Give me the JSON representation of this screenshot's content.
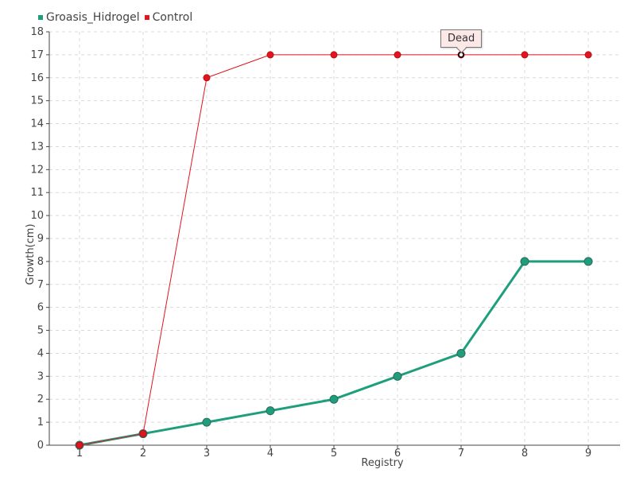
{
  "chart_data": {
    "type": "line",
    "xlabel": "Registry",
    "ylabel": "Growth(cm)",
    "x": [
      1,
      2,
      3,
      4,
      5,
      6,
      7,
      8,
      9
    ],
    "ylim": [
      0,
      18
    ],
    "yticks": [
      0,
      1,
      2,
      3,
      4,
      5,
      6,
      7,
      8,
      9,
      10,
      11,
      12,
      13,
      14,
      15,
      16,
      17,
      18
    ],
    "grid": true,
    "legend_position": "top-left",
    "series": [
      {
        "name": "Groasis_Hidrogel",
        "color": "#1f9e7e",
        "values": [
          0,
          0.5,
          1,
          1.5,
          2,
          3,
          4,
          8,
          8
        ]
      },
      {
        "name": "Control",
        "color": "#e0151f",
        "values": [
          0,
          0.5,
          16,
          17,
          17,
          17,
          17,
          17,
          17
        ]
      }
    ],
    "annotations": [
      {
        "series": "Control",
        "x": 7,
        "y": 17,
        "text": "Dead"
      }
    ]
  }
}
